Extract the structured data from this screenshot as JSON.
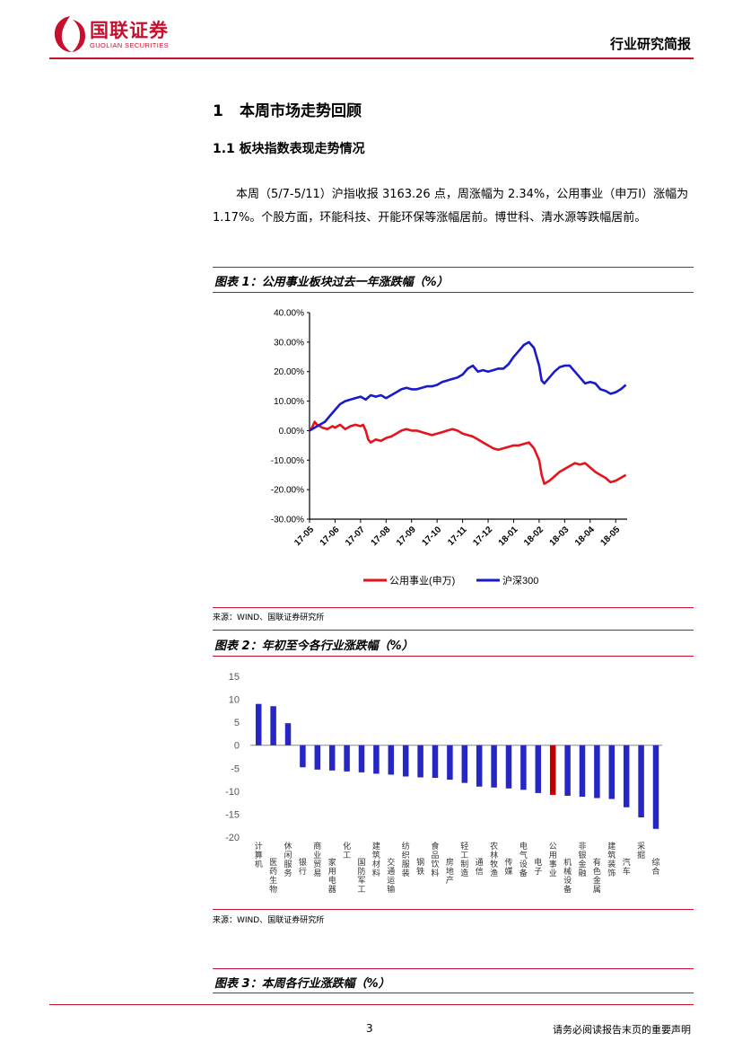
{
  "header": {
    "logo_cn": "国联证券",
    "logo_en": "GUOLIAN SECURITIES",
    "report_type": "行业研究简报"
  },
  "section1": {
    "num": "1",
    "title": "本周市场走势回顾"
  },
  "section1_1": {
    "title": "1.1 板块指数表现走势情况"
  },
  "paragraph": "本周（5/7-5/11）沪指收报 3163.26 点，周涨幅为 2.34%，公用事业（申万Ⅰ）涨幅为 1.17%。个股方面，环能科技、开能环保等涨幅居前。博世科、清水源等跌幅居前。",
  "figure1": {
    "title": "图表 1：公用事业板块过去一年涨跌幅（%）",
    "source": "来源：WIND、国联证券研究所"
  },
  "figure2": {
    "title": "图表 2：年初至今各行业涨跌幅（%）",
    "source": "来源：WIND、国联证券研究所"
  },
  "figure3": {
    "title": "图表 3：本周各行业涨跌幅（%）"
  },
  "footer": {
    "page": "3",
    "disclaimer": "请务必阅读报告末页的重要声明"
  },
  "colors": {
    "brand": "#c8102e",
    "utilities": "#e3141b",
    "hs300": "#1a1acc",
    "bar": "#2626c4",
    "bar_highlight": "#c00000"
  },
  "chart_data": [
    {
      "type": "line",
      "x_ticks": [
        "17-05",
        "17-06",
        "17-07",
        "17-08",
        "17-09",
        "17-10",
        "17-11",
        "17-12",
        "18-01",
        "18-02",
        "18-03",
        "18-04",
        "18-05"
      ],
      "y_ticks": [
        "40.00%",
        "30.00%",
        "20.00%",
        "10.00%",
        "0.00%",
        "-10.00%",
        "-20.00%",
        "-30.00%"
      ],
      "ylim": [
        -30,
        40
      ],
      "legend_position": "bottom",
      "series": [
        {
          "name": "公用事业(申万)",
          "color": "#e3141b",
          "points": [
            [
              0,
              0
            ],
            [
              0.1,
              1
            ],
            [
              0.2,
              3
            ],
            [
              0.3,
              2
            ],
            [
              0.5,
              1
            ],
            [
              0.7,
              0.5
            ],
            [
              0.9,
              1.5
            ],
            [
              1.0,
              1
            ],
            [
              1.2,
              2
            ],
            [
              1.4,
              0.5
            ],
            [
              1.6,
              1.5
            ],
            [
              1.8,
              2
            ],
            [
              2.0,
              1.5
            ],
            [
              2.1,
              2
            ],
            [
              2.2,
              0
            ],
            [
              2.3,
              -3
            ],
            [
              2.4,
              -4
            ],
            [
              2.6,
              -3
            ],
            [
              2.8,
              -3.5
            ],
            [
              3.0,
              -2.5
            ],
            [
              3.2,
              -2
            ],
            [
              3.4,
              -1
            ],
            [
              3.6,
              0
            ],
            [
              3.8,
              0.5
            ],
            [
              4.0,
              0
            ],
            [
              4.2,
              0
            ],
            [
              4.4,
              -0.5
            ],
            [
              4.6,
              -1
            ],
            [
              4.8,
              -1.5
            ],
            [
              5.0,
              -1
            ],
            [
              5.2,
              -0.5
            ],
            [
              5.4,
              0
            ],
            [
              5.6,
              0.5
            ],
            [
              5.8,
              0
            ],
            [
              6.0,
              -1
            ],
            [
              6.2,
              -1.5
            ],
            [
              6.4,
              -2
            ],
            [
              6.6,
              -3
            ],
            [
              6.8,
              -4
            ],
            [
              7.0,
              -5
            ],
            [
              7.2,
              -6
            ],
            [
              7.4,
              -6.5
            ],
            [
              7.6,
              -6
            ],
            [
              7.8,
              -5.5
            ],
            [
              8.0,
              -5
            ],
            [
              8.2,
              -5
            ],
            [
              8.4,
              -4.5
            ],
            [
              8.6,
              -4
            ],
            [
              8.8,
              -6
            ],
            [
              9.0,
              -10
            ],
            [
              9.1,
              -15
            ],
            [
              9.2,
              -18
            ],
            [
              9.4,
              -17
            ],
            [
              9.6,
              -15.5
            ],
            [
              9.8,
              -14
            ],
            [
              10.0,
              -13
            ],
            [
              10.2,
              -12
            ],
            [
              10.4,
              -11
            ],
            [
              10.6,
              -11.5
            ],
            [
              10.8,
              -11
            ],
            [
              11.0,
              -12.5
            ],
            [
              11.2,
              -14
            ],
            [
              11.4,
              -15
            ],
            [
              11.6,
              -16
            ],
            [
              11.8,
              -17.5
            ],
            [
              12.0,
              -17
            ],
            [
              12.2,
              -16
            ],
            [
              12.4,
              -15
            ]
          ]
        },
        {
          "name": "沪深300",
          "color": "#1a1acc",
          "points": [
            [
              0,
              0
            ],
            [
              0.2,
              1
            ],
            [
              0.4,
              2
            ],
            [
              0.6,
              3
            ],
            [
              0.8,
              5
            ],
            [
              1.0,
              7
            ],
            [
              1.2,
              9
            ],
            [
              1.4,
              10
            ],
            [
              1.6,
              10.5
            ],
            [
              1.8,
              11
            ],
            [
              2.0,
              11.5
            ],
            [
              2.2,
              10.5
            ],
            [
              2.4,
              12
            ],
            [
              2.6,
              11.5
            ],
            [
              2.8,
              12
            ],
            [
              3.0,
              11
            ],
            [
              3.2,
              12
            ],
            [
              3.4,
              13
            ],
            [
              3.6,
              14
            ],
            [
              3.8,
              14.5
            ],
            [
              4.0,
              14
            ],
            [
              4.2,
              14
            ],
            [
              4.4,
              14.5
            ],
            [
              4.6,
              15
            ],
            [
              4.8,
              15
            ],
            [
              5.0,
              15.5
            ],
            [
              5.2,
              16.5
            ],
            [
              5.4,
              17
            ],
            [
              5.6,
              17.5
            ],
            [
              5.8,
              18
            ],
            [
              6.0,
              19
            ],
            [
              6.2,
              21
            ],
            [
              6.4,
              22
            ],
            [
              6.6,
              20
            ],
            [
              6.8,
              20.5
            ],
            [
              7.0,
              20
            ],
            [
              7.2,
              20.5
            ],
            [
              7.4,
              21
            ],
            [
              7.6,
              21
            ],
            [
              7.8,
              22.5
            ],
            [
              8.0,
              25
            ],
            [
              8.2,
              27
            ],
            [
              8.4,
              29
            ],
            [
              8.6,
              30
            ],
            [
              8.8,
              28
            ],
            [
              9.0,
              22
            ],
            [
              9.1,
              17
            ],
            [
              9.2,
              16
            ],
            [
              9.4,
              18
            ],
            [
              9.6,
              20
            ],
            [
              9.8,
              21.5
            ],
            [
              10.0,
              22
            ],
            [
              10.2,
              22
            ],
            [
              10.4,
              20
            ],
            [
              10.6,
              18
            ],
            [
              10.8,
              16
            ],
            [
              11.0,
              16.5
            ],
            [
              11.2,
              16
            ],
            [
              11.4,
              14
            ],
            [
              11.6,
              13.5
            ],
            [
              11.8,
              12.5
            ],
            [
              12.0,
              13
            ],
            [
              12.2,
              14
            ],
            [
              12.4,
              15.5
            ]
          ]
        }
      ]
    },
    {
      "type": "bar",
      "ylim": [
        -20,
        15
      ],
      "y_ticks": [
        15,
        10,
        5,
        0,
        -5,
        -10,
        -15,
        -20
      ],
      "highlight": "公用事业",
      "categories": [
        "计算机",
        "医药生物",
        "休闲服务",
        "银行",
        "商业贸易",
        "家用电器",
        "化工",
        "国防军工",
        "建筑材料",
        "交通运输",
        "纺织服装",
        "钢铁",
        "食品饮料",
        "房地产",
        "轻工制造",
        "通信",
        "农林牧渔",
        "传媒",
        "电气设备",
        "电子",
        "公用事业",
        "机械设备",
        "非银金融",
        "有色金属",
        "建筑装饰",
        "汽车",
        "采掘",
        "综合"
      ],
      "values": [
        9.0,
        8.5,
        4.8,
        -4.8,
        -5.3,
        -5.5,
        -5.7,
        -5.9,
        -6.2,
        -6.4,
        -6.8,
        -7.0,
        -7.1,
        -7.5,
        -8.2,
        -9.0,
        -9.2,
        -9.4,
        -9.7,
        -10.4,
        -10.8,
        -11.0,
        -11.2,
        -11.5,
        -11.7,
        -13.5,
        -15.7,
        -18.2
      ]
    }
  ]
}
